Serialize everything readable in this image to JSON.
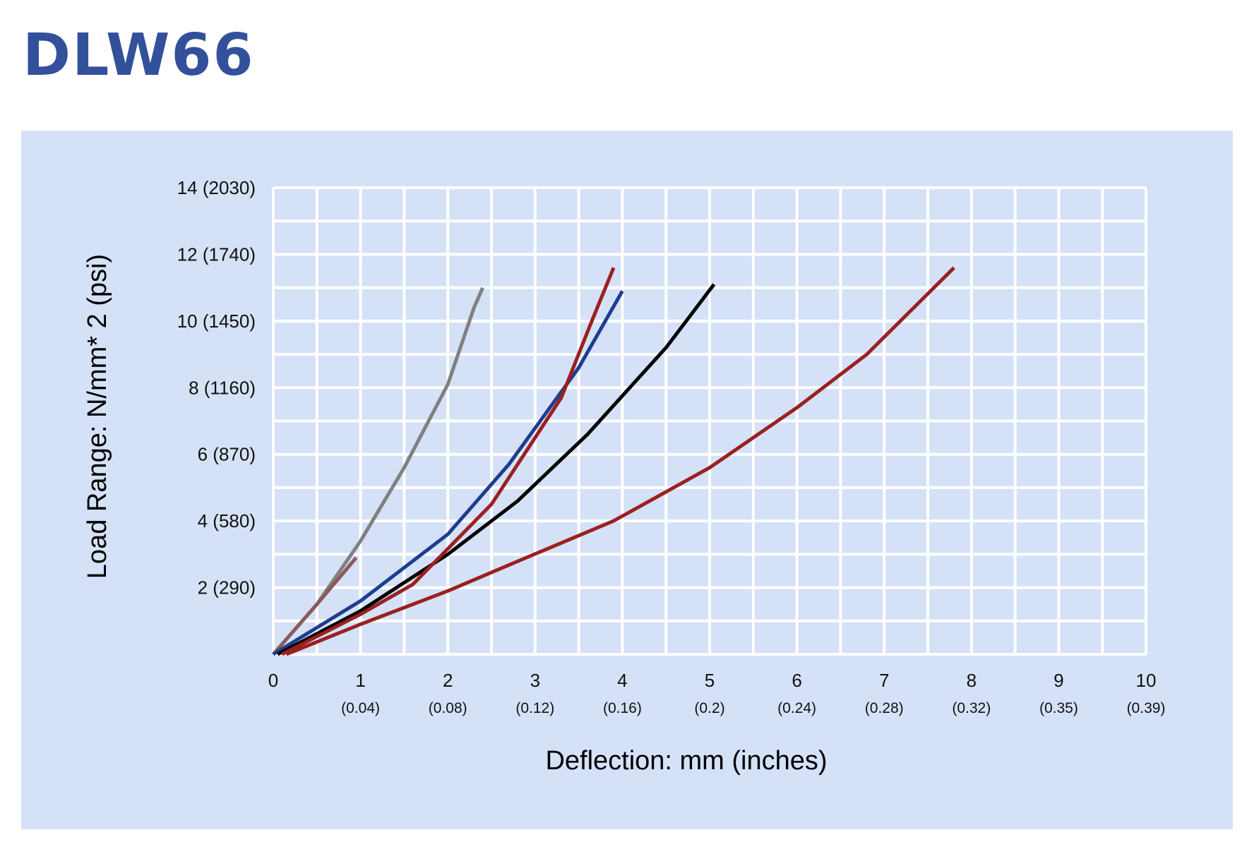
{
  "header": {
    "title": "DLW66"
  },
  "chart_data": {
    "type": "line",
    "title": "",
    "xlabel": "Deflection: mm (inches)",
    "ylabel": "Load Range: N/mm* 2 (psi)",
    "xlim": [
      0,
      10
    ],
    "ylim": [
      0,
      14
    ],
    "grid": true,
    "x_ticks": [
      {
        "value": 0,
        "label": "0",
        "sub": ""
      },
      {
        "value": 1,
        "label": "1",
        "sub": "(0.04)"
      },
      {
        "value": 2,
        "label": "2",
        "sub": "(0.08)"
      },
      {
        "value": 3,
        "label": "3",
        "sub": "(0.12)"
      },
      {
        "value": 4,
        "label": "4",
        "sub": "(0.16)"
      },
      {
        "value": 5,
        "label": "5",
        "sub": "(0.2)"
      },
      {
        "value": 6,
        "label": "6",
        "sub": "(0.24)"
      },
      {
        "value": 7,
        "label": "7",
        "sub": "(0.28)"
      },
      {
        "value": 8,
        "label": "8",
        "sub": "(0.32)"
      },
      {
        "value": 9,
        "label": "9",
        "sub": "(0.35)"
      },
      {
        "value": 10,
        "label": "10",
        "sub": "(0.39)"
      }
    ],
    "y_ticks": [
      {
        "value": 2,
        "label": "2 (290)"
      },
      {
        "value": 4,
        "label": "4 (580)"
      },
      {
        "value": 6,
        "label": "6 (870)"
      },
      {
        "value": 8,
        "label": "8 (1160)"
      },
      {
        "value": 10,
        "label": "10 (1450)"
      },
      {
        "value": 12,
        "label": "12 (1740)"
      },
      {
        "value": 14,
        "label": "14 (2030)"
      }
    ],
    "series": [
      {
        "color": "#808080",
        "x": [
          0,
          0.5,
          1.0,
          1.5,
          2.0,
          2.3,
          2.4
        ],
        "y": [
          0,
          1.5,
          3.4,
          5.6,
          8.1,
          10.4,
          11.0
        ]
      },
      {
        "color": "#8b5a5a",
        "x": [
          0,
          0.5,
          0.95
        ],
        "y": [
          0,
          1.5,
          2.9
        ]
      },
      {
        "color": "#1d3d8f",
        "x": [
          0,
          1.0,
          2.0,
          2.7,
          3.5,
          4.0
        ],
        "y": [
          0,
          1.6,
          3.6,
          5.7,
          8.6,
          10.9
        ]
      },
      {
        "color": "#000000",
        "x": [
          0.05,
          1.0,
          2.0,
          2.8,
          3.6,
          4.5,
          5.05
        ],
        "y": [
          0,
          1.3,
          3.0,
          4.6,
          6.6,
          9.2,
          11.1
        ]
      },
      {
        "color": "#9a2020",
        "x": [
          0.1,
          1.0,
          1.6,
          2.5,
          3.3,
          3.65,
          3.9
        ],
        "y": [
          0,
          1.2,
          2.1,
          4.5,
          7.7,
          10.0,
          11.6
        ]
      },
      {
        "color": "#9a2020",
        "x": [
          0.15,
          1.0,
          2.0,
          2.9,
          3.9,
          5.0,
          6.0,
          6.8,
          7.8
        ],
        "y": [
          0,
          0.9,
          1.9,
          2.9,
          4.0,
          5.6,
          7.4,
          9.0,
          11.6
        ]
      }
    ]
  }
}
